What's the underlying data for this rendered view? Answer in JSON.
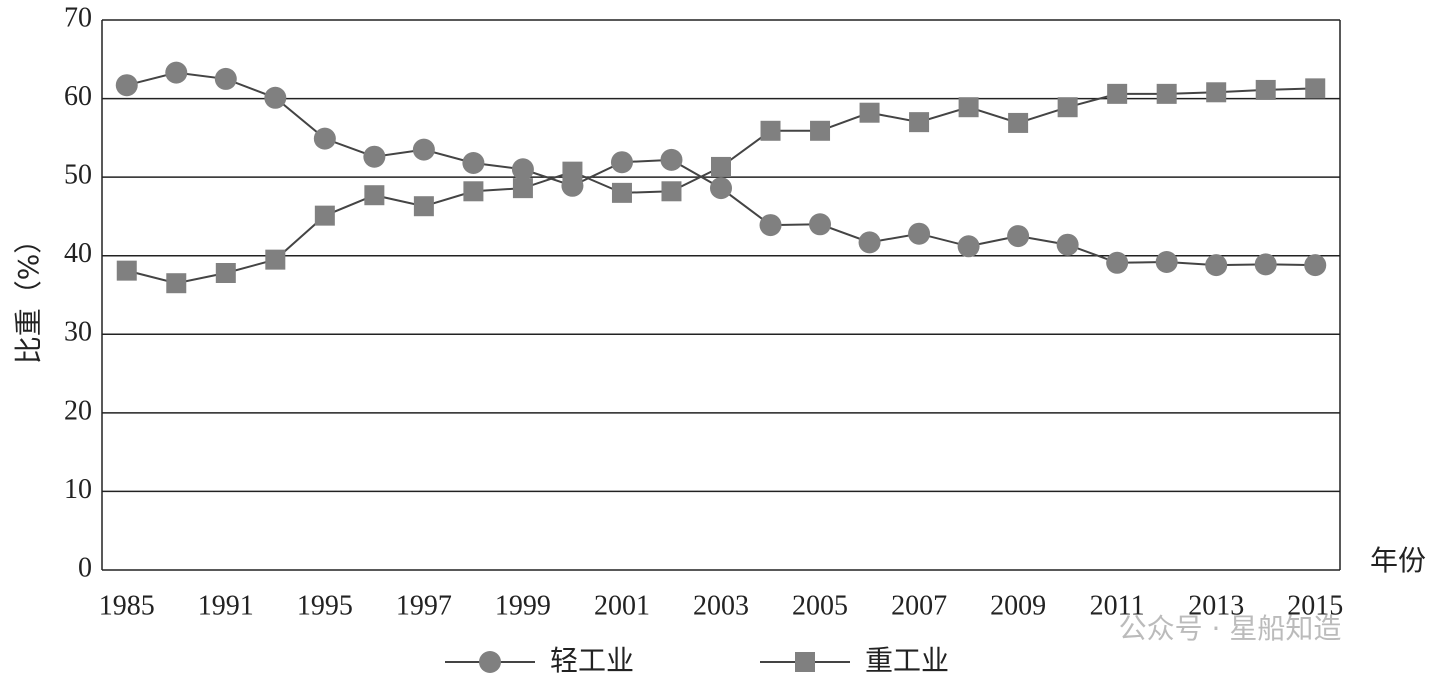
{
  "chart_data": {
    "type": "line",
    "x_label": "年份",
    "y_label": "比重（%）",
    "categories": [
      "1985",
      null,
      "1991",
      null,
      "1995",
      null,
      "1997",
      null,
      "1999",
      null,
      "2001",
      null,
      "2003",
      null,
      "2005",
      null,
      "2007",
      null,
      "2009",
      null,
      "2011",
      null,
      "2013",
      null,
      "2015"
    ],
    "series": [
      {
        "name": "轻工业",
        "color": "#808080",
        "marker": "circle",
        "values": [
          61.7,
          63.3,
          62.5,
          60.1,
          54.9,
          52.6,
          53.5,
          51.8,
          51.0,
          48.9,
          51.9,
          52.2,
          48.6,
          43.9,
          44.0,
          41.7,
          42.8,
          41.2,
          42.5,
          41.4,
          39.1,
          39.2,
          38.8,
          38.9,
          38.8
        ]
      },
      {
        "name": "重工业",
        "color": "#808080",
        "marker": "square",
        "values": [
          38.1,
          36.5,
          37.8,
          39.5,
          45.1,
          47.7,
          46.3,
          48.2,
          48.6,
          50.7,
          48.0,
          48.2,
          51.3,
          55.9,
          55.9,
          58.2,
          57.0,
          58.9,
          56.9,
          58.9,
          60.6,
          60.6,
          60.8,
          61.1,
          61.3
        ]
      }
    ],
    "ylim": [
      0,
      70
    ],
    "yticks": [
      0,
      10,
      20,
      30,
      40,
      50,
      60,
      70
    ],
    "grid": true,
    "legend": "bottom",
    "watermark": "公众号 · 星船知造"
  }
}
